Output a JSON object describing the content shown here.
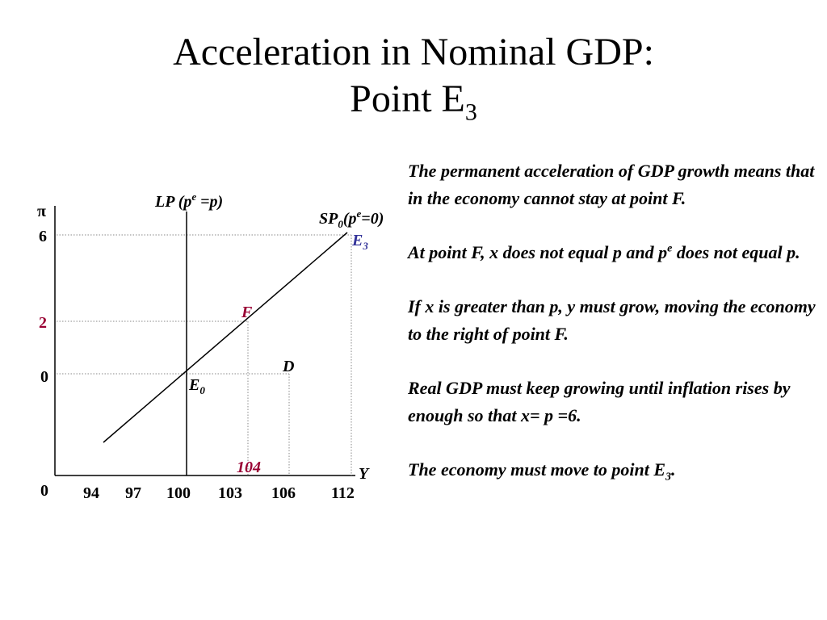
{
  "title": {
    "line1": "Acceleration in Nominal GDP:",
    "line2_main": "Point E",
    "line2_sub": "3"
  },
  "diagram": {
    "y_axis_symbol": "π",
    "x_axis_label": "Y",
    "origin_label": "0",
    "y_ticks": [
      {
        "label": "6",
        "value": 6,
        "color": "#000000"
      },
      {
        "label": "2",
        "value": 2,
        "color": "#990033"
      },
      {
        "label": "0",
        "value": 0,
        "color": "#000000"
      }
    ],
    "x_ticks": [
      "94",
      "97",
      "100",
      "103",
      "106",
      "112"
    ],
    "lp_curve": {
      "label_main": "LP (p",
      "label_sup": "e",
      "label_rest": " =p)",
      "x": 100
    },
    "sp_curve": {
      "label_main": "SP",
      "label_sub": "0",
      "label_mid": "(p",
      "label_sup": "e",
      "label_rest": "=0)",
      "from": {
        "x": 94,
        "y": -2.5
      },
      "to": {
        "x": 112,
        "y": 7
      }
    },
    "points": {
      "E0": {
        "name": "E",
        "sub": "0",
        "x": 100,
        "y": 0,
        "color": "#000000"
      },
      "F": {
        "name": "F",
        "x": 104,
        "y": 2,
        "color": "#990033"
      },
      "D": {
        "name": "D",
        "x": 106,
        "y": 0,
        "color": "#000000"
      },
      "E3": {
        "name": "E",
        "sub": "3",
        "x": 112,
        "y": 6,
        "color": "#333399"
      }
    },
    "value_104": {
      "label": "104",
      "color": "#990033"
    }
  },
  "notes": {
    "p1": "The permanent acceleration of GDP growth means that in the economy cannot stay at point F.",
    "p2_a": "At point F, x does not equal p and p",
    "p2_sup": "e",
    "p2_b": " does not equal p.",
    "p3": "If x is greater than p, y must grow, moving the economy to the right of point F.",
    "p4": "Real GDP must keep growing until inflation rises by enough so that  x= p =6.",
    "p5_a": "The economy must move to point E",
    "p5_sub": "3",
    "p5_b": "."
  }
}
